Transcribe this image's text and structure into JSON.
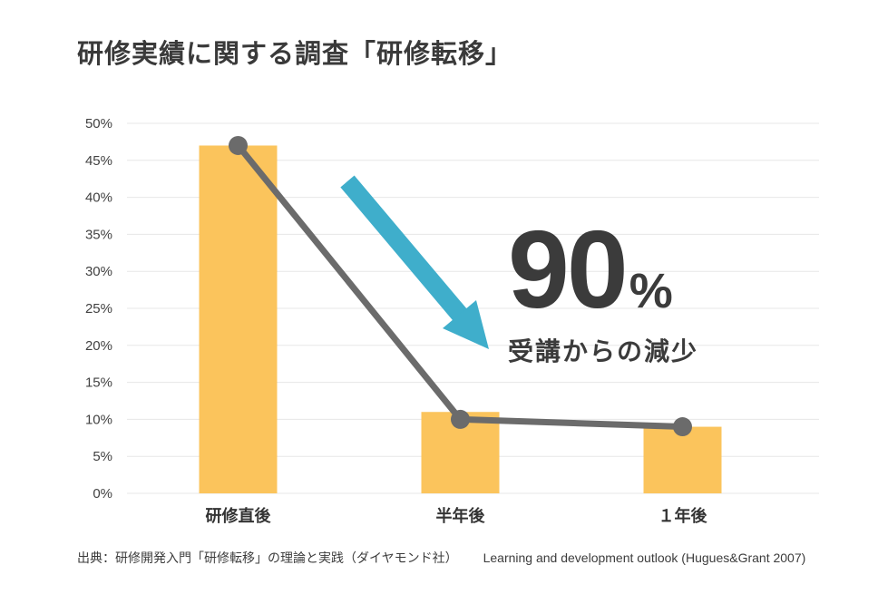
{
  "page": {
    "title": "研修実績に関する調査「研修転移」"
  },
  "chart_data": {
    "type": "bar",
    "title": "研修実績に関する調査「研修転移」",
    "categories": [
      "研修直後",
      "半年後",
      "１年後"
    ],
    "series": [
      {
        "name": "bars",
        "type": "bar",
        "values": [
          47,
          11,
          9
        ]
      },
      {
        "name": "trend-line",
        "type": "line",
        "values": [
          47,
          10,
          9
        ]
      }
    ],
    "xlabel": "",
    "ylabel": "",
    "ylim": [
      0,
      50
    ],
    "ytick_step": 5,
    "ytick_labels": [
      "0%",
      "5%",
      "10%",
      "15%",
      "20%",
      "25%",
      "30%",
      "35%",
      "40%",
      "45%",
      "50%"
    ],
    "grid": true,
    "legend": "none",
    "bar_color": "#FBC45C",
    "line_color": "#6B6B6B",
    "grid_color": "#E7E7E7",
    "annotation": {
      "big_number": "90",
      "percent_sign": "%",
      "caption": "受講からの減少",
      "arrow_color": "#3FAECB"
    }
  },
  "footer": {
    "source_jp": "出典：研修開発入門「研修転移」の理論と実践（ダイヤモンド社）",
    "source_en": "Learning and development outlook (Hugues&Grant 2007)"
  }
}
